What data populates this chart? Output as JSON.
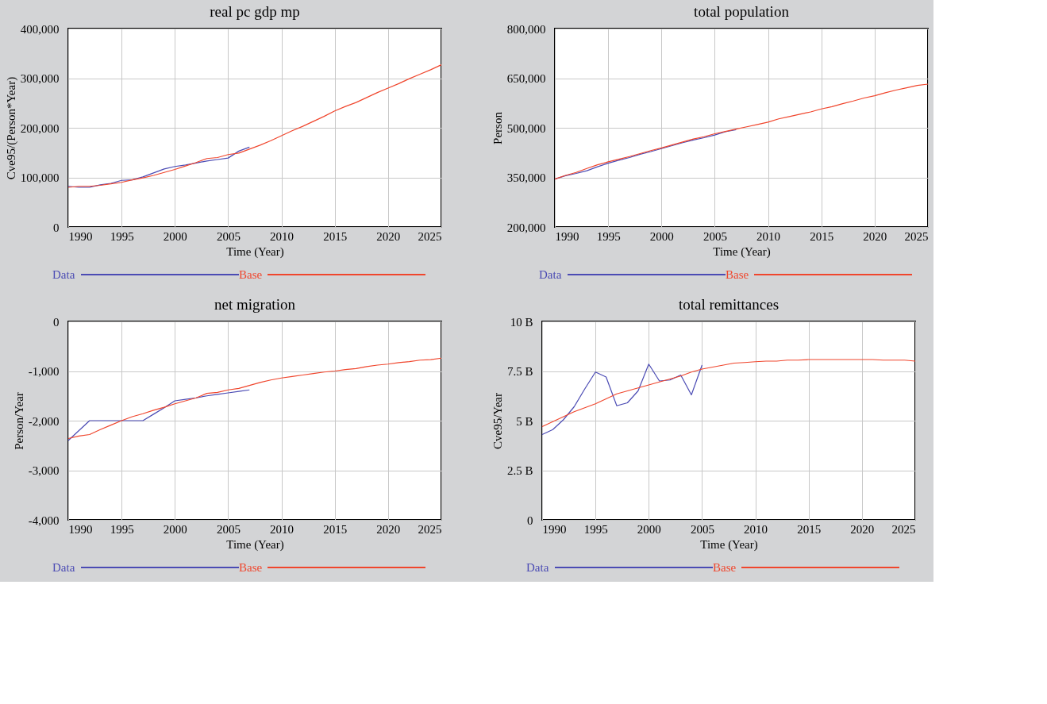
{
  "chart_data": [
    {
      "type": "line",
      "title": "real pc gdp mp",
      "xlabel": "Time (Year)",
      "ylabel": "Cve95/(Person*Year)",
      "xlim": [
        1990,
        2025
      ],
      "xticks": [
        1990,
        1995,
        2000,
        2005,
        2010,
        2015,
        2020,
        2025
      ],
      "ylim": [
        0,
        400000
      ],
      "yticks": [
        {
          "value": 0,
          "label": "0"
        },
        {
          "value": 100000,
          "label": "100,000"
        },
        {
          "value": 200000,
          "label": "200,000"
        },
        {
          "value": 300000,
          "label": "300,000"
        },
        {
          "value": 400000,
          "label": "400,000"
        }
      ],
      "grid": true,
      "legend": "bottom",
      "x": [
        1990,
        1991,
        1992,
        1993,
        1994,
        1995,
        1996,
        1997,
        1998,
        1999,
        2000,
        2001,
        2002,
        2003,
        2004,
        2005,
        2006,
        2007,
        2008,
        2009,
        2010,
        2011,
        2012,
        2013,
        2014,
        2015,
        2016,
        2017,
        2018,
        2019,
        2020,
        2021,
        2022,
        2023,
        2024,
        2025
      ],
      "series": [
        {
          "name": "Data",
          "color": "#4b4bb4",
          "x": [
            1990,
            1991,
            1992,
            1993,
            1994,
            1995,
            1996,
            1997,
            1998,
            1999,
            2000,
            2001,
            2002,
            2003,
            2004,
            2005,
            2006,
            2007
          ],
          "values": [
            82000,
            80000,
            80000,
            85000,
            88000,
            94000,
            95000,
            101000,
            109000,
            117000,
            122000,
            125000,
            129000,
            133000,
            136000,
            139000,
            153000,
            161000
          ]
        },
        {
          "name": "Base",
          "color": "#f0462d",
          "values": [
            80000,
            82000,
            82000,
            84000,
            87000,
            90000,
            95000,
            99000,
            104000,
            110000,
            116000,
            123000,
            130000,
            138000,
            140000,
            146000,
            149000,
            157000,
            165000,
            174000,
            184000,
            194000,
            203000,
            213000,
            223000,
            234000,
            243000,
            251000,
            261000,
            271000,
            280000,
            289000,
            299000,
            308000,
            317000,
            327000
          ]
        }
      ]
    },
    {
      "type": "line",
      "title": "total population",
      "xlabel": "Time (Year)",
      "ylabel": "Person",
      "xlim": [
        1990,
        2025
      ],
      "xticks": [
        1990,
        1995,
        2000,
        2005,
        2010,
        2015,
        2020,
        2025
      ],
      "ylim": [
        200000,
        800000
      ],
      "yticks": [
        {
          "value": 200000,
          "label": "200,000"
        },
        {
          "value": 350000,
          "label": "350,000"
        },
        {
          "value": 500000,
          "label": "500,000"
        },
        {
          "value": 650000,
          "label": "650,000"
        },
        {
          "value": 800000,
          "label": "800,000"
        }
      ],
      "grid": true,
      "legend": "bottom",
      "x": [
        1990,
        1991,
        1992,
        1993,
        1994,
        1995,
        1996,
        1997,
        1998,
        1999,
        2000,
        2001,
        2002,
        2003,
        2004,
        2005,
        2006,
        2007,
        2008,
        2009,
        2010,
        2011,
        2012,
        2013,
        2014,
        2015,
        2016,
        2017,
        2018,
        2019,
        2020,
        2021,
        2022,
        2023,
        2024,
        2025
      ],
      "series": [
        {
          "name": "Data",
          "color": "#4b4bb4",
          "x": [
            1990,
            1991,
            1992,
            1993,
            1994,
            1995,
            1996,
            1997,
            1998,
            1999,
            2000,
            2001,
            2002,
            2003,
            2004,
            2005,
            2006,
            2007
          ],
          "values": [
            345000,
            355000,
            362000,
            370000,
            382000,
            393000,
            402000,
            410000,
            420000,
            428000,
            437000,
            446000,
            455000,
            463000,
            470000,
            478000,
            488000,
            494000
          ]
        },
        {
          "name": "Base",
          "color": "#f0462d",
          "values": [
            345000,
            356000,
            365000,
            377000,
            388000,
            397000,
            405000,
            413000,
            422000,
            431000,
            439000,
            448000,
            457000,
            466000,
            473000,
            482000,
            489000,
            496000,
            503000,
            510000,
            517000,
            527000,
            534000,
            541000,
            548000,
            557000,
            564000,
            573000,
            581000,
            590000,
            597000,
            606000,
            614000,
            621000,
            628000,
            632000
          ]
        }
      ]
    },
    {
      "type": "line",
      "title": "net migration",
      "xlabel": "Time (Year)",
      "ylabel": "Person/Year",
      "xlim": [
        1990,
        2025
      ],
      "xticks": [
        1990,
        1995,
        2000,
        2005,
        2010,
        2015,
        2020,
        2025
      ],
      "ylim": [
        -4000,
        0
      ],
      "yticks": [
        {
          "value": -4000,
          "label": "-4,000"
        },
        {
          "value": -3000,
          "label": "-3,000"
        },
        {
          "value": -2000,
          "label": "-2,000"
        },
        {
          "value": -1000,
          "label": "-1,000"
        },
        {
          "value": 0,
          "label": "0"
        }
      ],
      "grid": true,
      "legend": "bottom",
      "x": [
        1990,
        1991,
        1992,
        1993,
        1994,
        1995,
        1996,
        1997,
        1998,
        1999,
        2000,
        2001,
        2002,
        2003,
        2004,
        2005,
        2006,
        2007,
        2008,
        2009,
        2010,
        2011,
        2012,
        2013,
        2014,
        2015,
        2016,
        2017,
        2018,
        2019,
        2020,
        2021,
        2022,
        2023,
        2024,
        2025
      ],
      "series": [
        {
          "name": "Data",
          "color": "#4b4bb4",
          "x": [
            1990,
            1991,
            1992,
            1993,
            1994,
            1995,
            1996,
            1997,
            1998,
            1999,
            2000,
            2001,
            2002,
            2003,
            2004,
            2005,
            2006,
            2007
          ],
          "values": [
            -2400,
            -2200,
            -2000,
            -2000,
            -2000,
            -2000,
            -2000,
            -2000,
            -1870,
            -1740,
            -1600,
            -1570,
            -1540,
            -1500,
            -1470,
            -1440,
            -1410,
            -1380
          ]
        },
        {
          "name": "Base",
          "color": "#f0462d",
          "values": [
            -2360,
            -2310,
            -2280,
            -2180,
            -2090,
            -2000,
            -1920,
            -1860,
            -1790,
            -1730,
            -1660,
            -1600,
            -1540,
            -1450,
            -1430,
            -1380,
            -1350,
            -1290,
            -1230,
            -1180,
            -1140,
            -1110,
            -1080,
            -1050,
            -1020,
            -1000,
            -970,
            -950,
            -910,
            -880,
            -860,
            -830,
            -810,
            -780,
            -770,
            -740
          ]
        }
      ]
    },
    {
      "type": "line",
      "title": "total remittances",
      "xlabel": "Time (Year)",
      "ylabel": "Cve95/Year",
      "xlim": [
        1990,
        2025
      ],
      "xticks": [
        1990,
        1995,
        2000,
        2005,
        2010,
        2015,
        2020,
        2025
      ],
      "ylim": [
        0,
        10
      ],
      "yticks": [
        {
          "value": 0,
          "label": "0"
        },
        {
          "value": 2.5,
          "label": "2.5 B"
        },
        {
          "value": 5,
          "label": "5 B"
        },
        {
          "value": 7.5,
          "label": "7.5 B"
        },
        {
          "value": 10,
          "label": "10 B"
        }
      ],
      "grid": true,
      "legend": "bottom",
      "x": [
        1990,
        1991,
        1992,
        1993,
        1994,
        1995,
        1996,
        1997,
        1998,
        1999,
        2000,
        2001,
        2002,
        2003,
        2004,
        2005,
        2006,
        2007,
        2008,
        2009,
        2010,
        2011,
        2012,
        2013,
        2014,
        2015,
        2016,
        2017,
        2018,
        2019,
        2020,
        2021,
        2022,
        2023,
        2024,
        2025
      ],
      "series": [
        {
          "name": "Data",
          "color": "#4b4bb4",
          "x": [
            1990,
            1991,
            1992,
            1993,
            1994,
            1995,
            1996,
            1997,
            1998,
            1999,
            2000,
            2001,
            2002,
            2003,
            2004,
            2005
          ],
          "values": [
            4.3,
            4.55,
            5.05,
            5.7,
            6.6,
            7.45,
            7.2,
            5.75,
            5.9,
            6.5,
            7.85,
            7.0,
            7.05,
            7.3,
            6.3,
            7.8
          ]
        },
        {
          "name": "Base",
          "color": "#f0462d",
          "values": [
            4.7,
            4.95,
            5.2,
            5.45,
            5.65,
            5.85,
            6.1,
            6.35,
            6.5,
            6.65,
            6.8,
            6.95,
            7.1,
            7.25,
            7.45,
            7.6,
            7.7,
            7.8,
            7.9,
            7.93,
            7.97,
            8.0,
            8.0,
            8.05,
            8.05,
            8.08,
            8.08,
            8.08,
            8.08,
            8.08,
            8.08,
            8.08,
            8.05,
            8.05,
            8.05,
            8.0
          ]
        }
      ]
    }
  ]
}
